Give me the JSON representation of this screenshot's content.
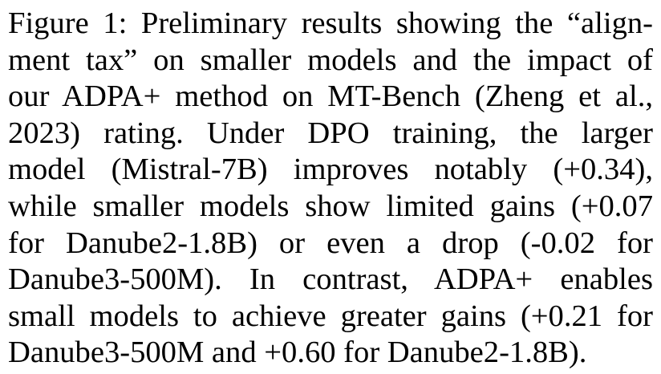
{
  "caption": {
    "label": "Figure 1:",
    "lines": [
      "Figure 1: Preliminary results showing the “align-",
      "ment tax” on smaller models and the impact of",
      "our ADPA+ method on MT-Bench (Zheng et al.,",
      "2023) rating. Under DPO training, the larger",
      "model (Mistral-7B) improves notably (+0.34),",
      "while smaller models show limited gains (+0.07",
      "for Danube2-1.8B) or even a drop (-0.02 for",
      "Danube3-500M). In contrast, ADPA+ enables",
      "small models to achieve greater gains (+0.21 for",
      "Danube3-500M and +0.60 for Danube2-1.8B)."
    ]
  }
}
